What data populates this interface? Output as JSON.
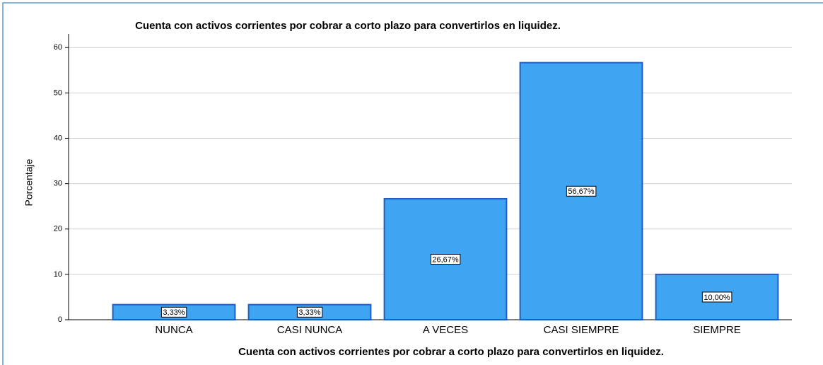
{
  "chart_data": {
    "type": "bar",
    "title": "Cuenta con activos corrientes por cobrar a corto plazo para convertirlos en liquidez.",
    "x_label": "Cuenta con activos corrientes por cobrar a corto plazo para convertirlos en liquidez.",
    "y_label": "Porcentaje",
    "categories": [
      "NUNCA",
      "CASI NUNCA",
      "A VECES",
      "CASI SIEMPRE",
      "SIEMPRE"
    ],
    "values": [
      3.33,
      3.33,
      26.67,
      56.67,
      10.0
    ],
    "value_labels": [
      "3,33%",
      "3,33%",
      "26,67%",
      "56,67%",
      "10,00%"
    ],
    "color": "#3fa5f2",
    "ylim": [
      0,
      63
    ],
    "yticks": [
      0,
      10,
      20,
      30,
      40,
      50,
      60
    ],
    "grid": true
  }
}
